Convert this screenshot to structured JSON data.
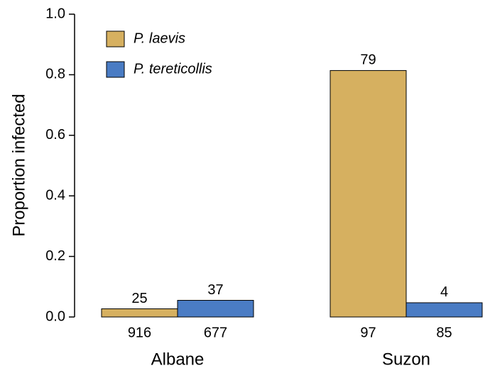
{
  "chart_data": {
    "type": "bar",
    "y_label": "Proportion infected",
    "categories": [
      "Albane",
      "Suzon"
    ],
    "series": [
      {
        "name": "P. laevis",
        "color": "#d6b060",
        "values": [
          0.027,
          0.814
        ],
        "infected": [
          "25",
          "79"
        ],
        "sample_size": [
          "916",
          "97"
        ]
      },
      {
        "name": "P. tereticollis",
        "color": "#4a7cc4",
        "values": [
          0.055,
          0.047
        ],
        "infected": [
          "37",
          "4"
        ],
        "sample_size": [
          "677",
          "85"
        ]
      }
    ],
    "ylim": [
      0,
      1
    ],
    "yticks": [
      {
        "value": 0,
        "label": "0.0"
      },
      0.2,
      0.4,
      0.6,
      0.8,
      {
        "value": 1,
        "label": "1.0"
      }
    ],
    "legend": "upper left"
  }
}
